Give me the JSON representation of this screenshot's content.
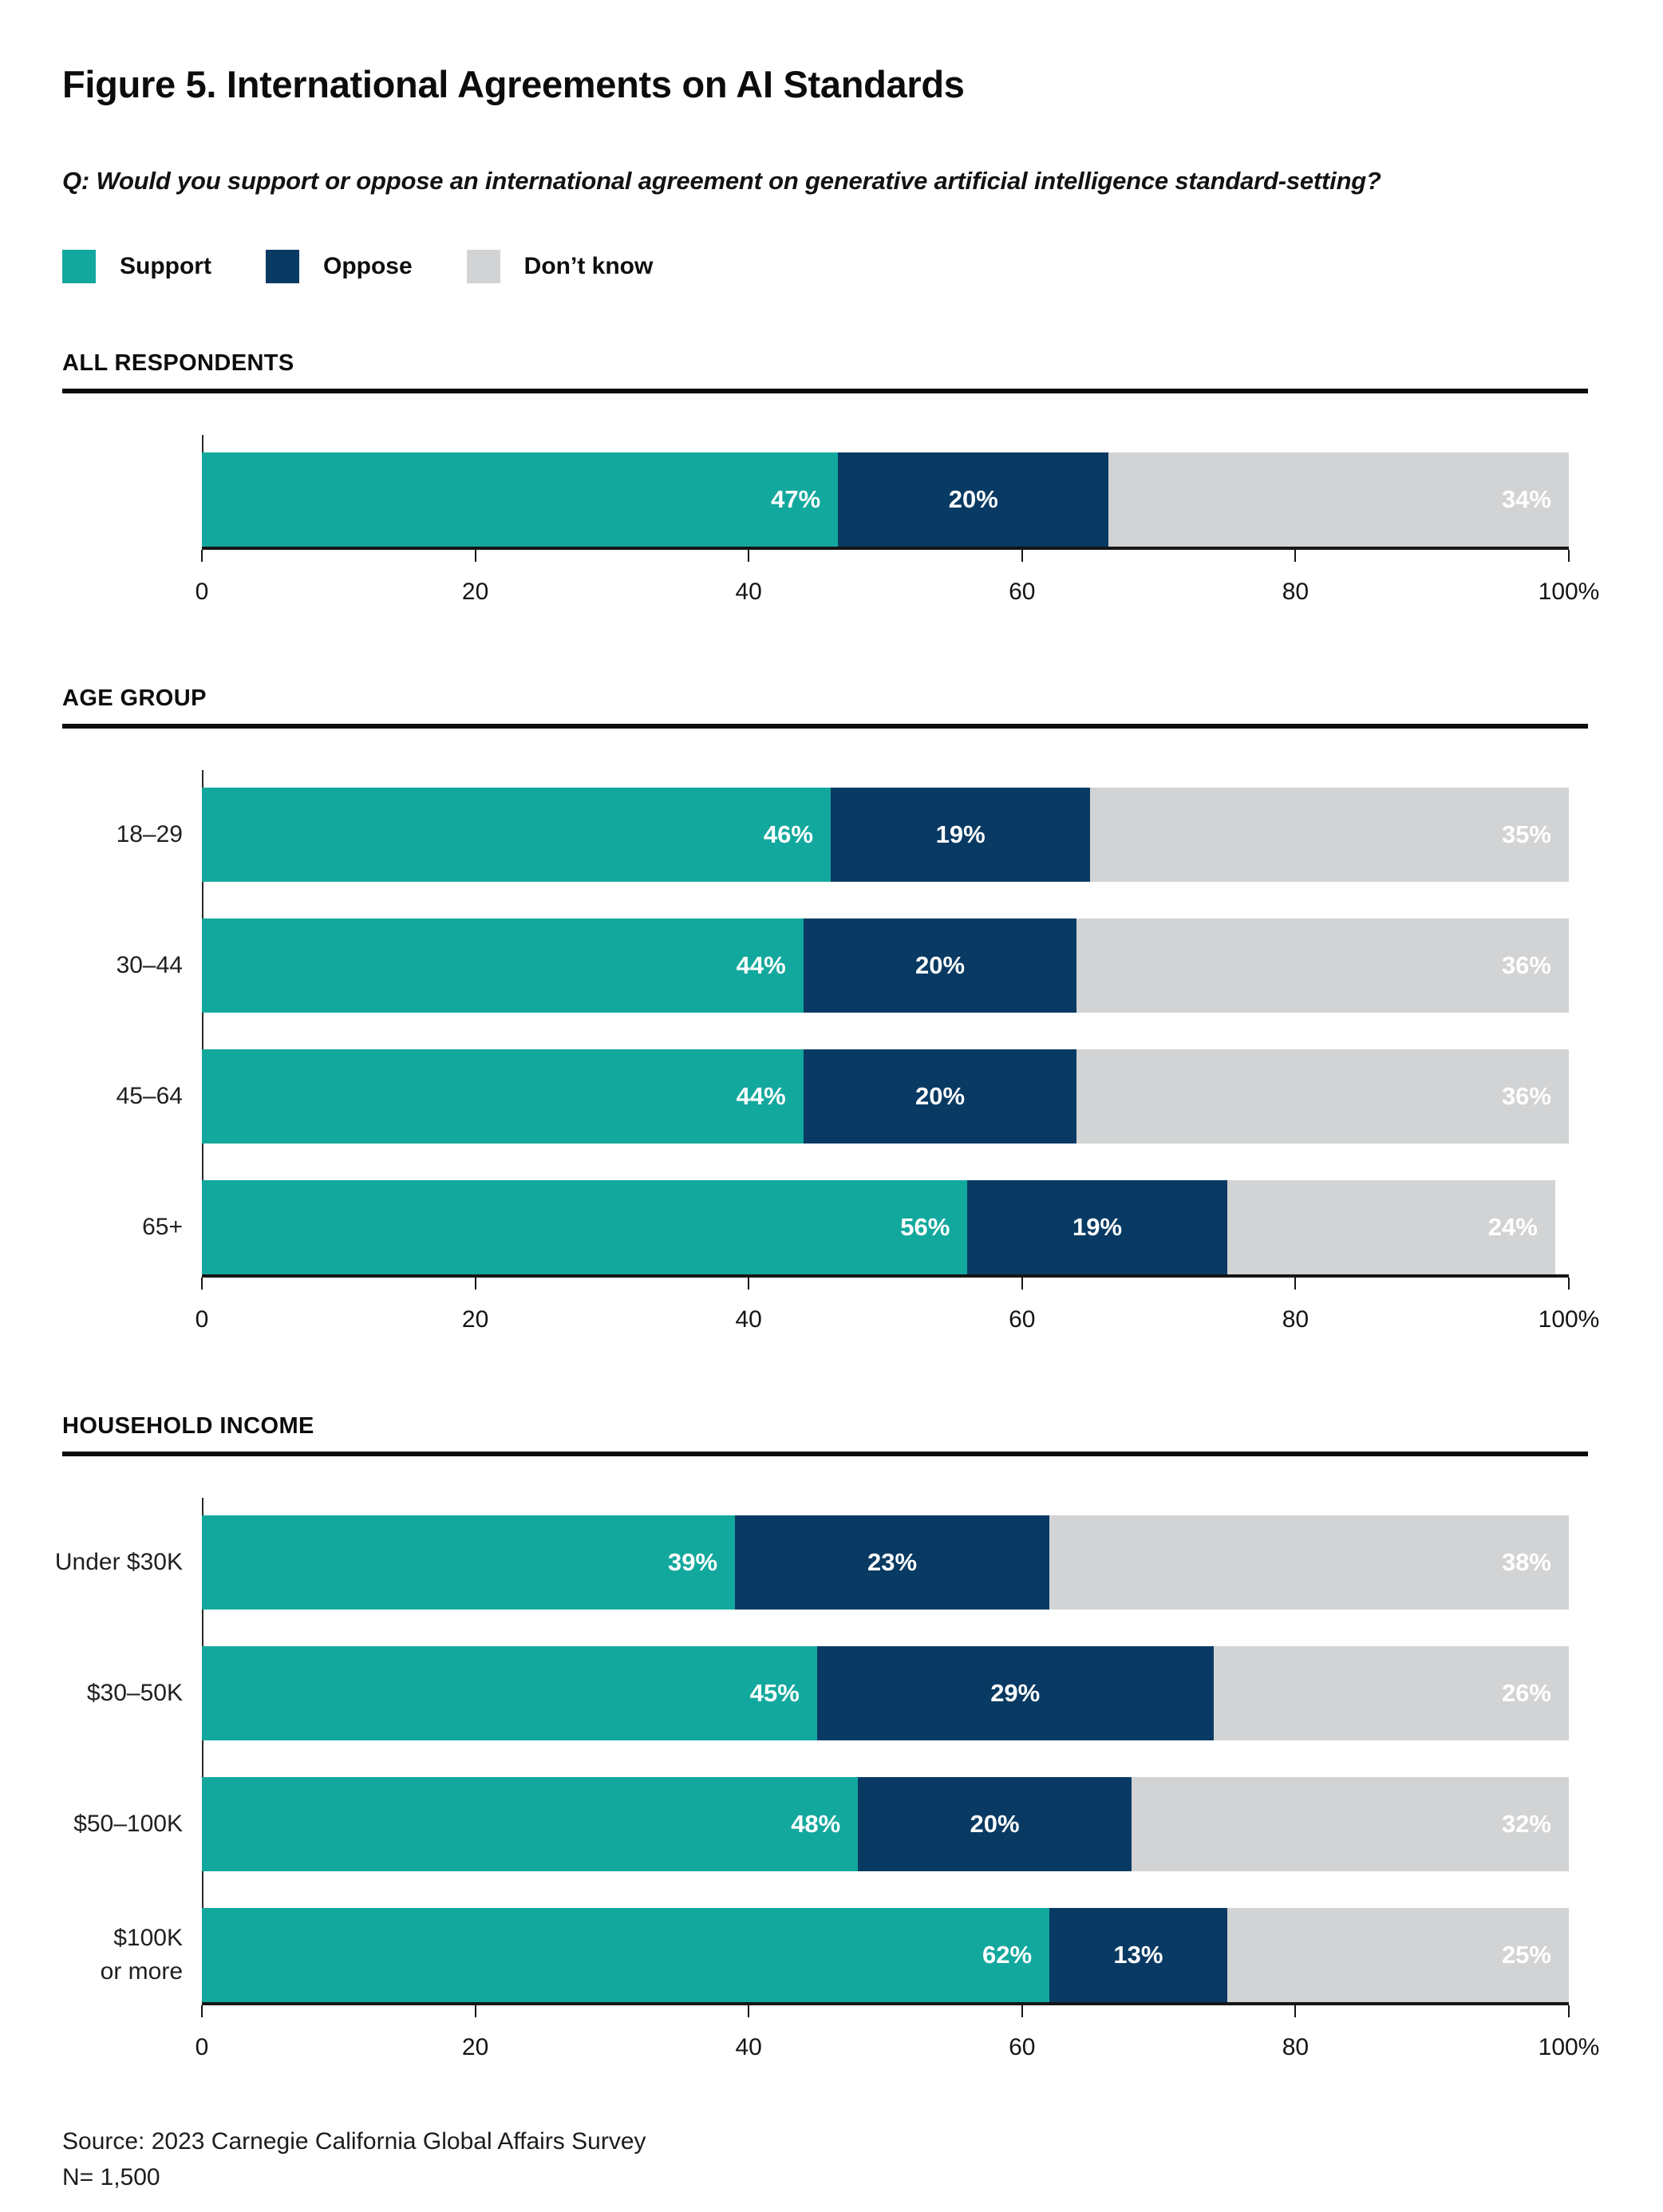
{
  "title": "Figure 5. International Agreements on AI Standards",
  "question": "Q: Would you support or oppose an international agreement on generative artificial intelligence standard-setting?",
  "legend": [
    {
      "label": "Support",
      "color": "#13A89D"
    },
    {
      "label": "Oppose",
      "color": "#083A63"
    },
    {
      "label": "Don’t know",
      "color": "#D2D3D4"
    }
  ],
  "axis": {
    "ticks": [
      "0",
      "20",
      "40",
      "60",
      "80",
      "100%"
    ],
    "xlim": [
      0,
      100
    ],
    "grid": false
  },
  "chart_data": [
    {
      "type": "bar",
      "orientation": "horizontal",
      "stacked": true,
      "section": "ALL RESPONDENTS",
      "categories": [
        ""
      ],
      "series": [
        {
          "name": "Support",
          "values": [
            47
          ]
        },
        {
          "name": "Oppose",
          "values": [
            20
          ]
        },
        {
          "name": "Don’t know",
          "values": [
            34
          ]
        }
      ],
      "unit": "%",
      "xlim": [
        0,
        100
      ],
      "legend_position": "top"
    },
    {
      "type": "bar",
      "orientation": "horizontal",
      "stacked": true,
      "section": "AGE GROUP",
      "categories": [
        "18–29",
        "30–44",
        "45–64",
        "65+"
      ],
      "series": [
        {
          "name": "Support",
          "values": [
            46,
            44,
            44,
            56
          ]
        },
        {
          "name": "Oppose",
          "values": [
            19,
            20,
            20,
            19
          ]
        },
        {
          "name": "Don’t know",
          "values": [
            35,
            36,
            36,
            24
          ]
        }
      ],
      "unit": "%",
      "xlim": [
        0,
        100
      ]
    },
    {
      "type": "bar",
      "orientation": "horizontal",
      "stacked": true,
      "section": "HOUSEHOLD INCOME",
      "categories": [
        "Under $30K",
        "$30–50K",
        "$50–100K",
        "$100K\nor more"
      ],
      "series": [
        {
          "name": "Support",
          "values": [
            39,
            45,
            48,
            62
          ]
        },
        {
          "name": "Oppose",
          "values": [
            23,
            29,
            20,
            13
          ]
        },
        {
          "name": "Don’t know",
          "values": [
            38,
            26,
            32,
            25
          ]
        }
      ],
      "unit": "%",
      "xlim": [
        0,
        100
      ]
    }
  ],
  "source": {
    "line1": "Source: 2023 Carnegie California Global Affairs Survey",
    "line2": "N= 1,500"
  }
}
